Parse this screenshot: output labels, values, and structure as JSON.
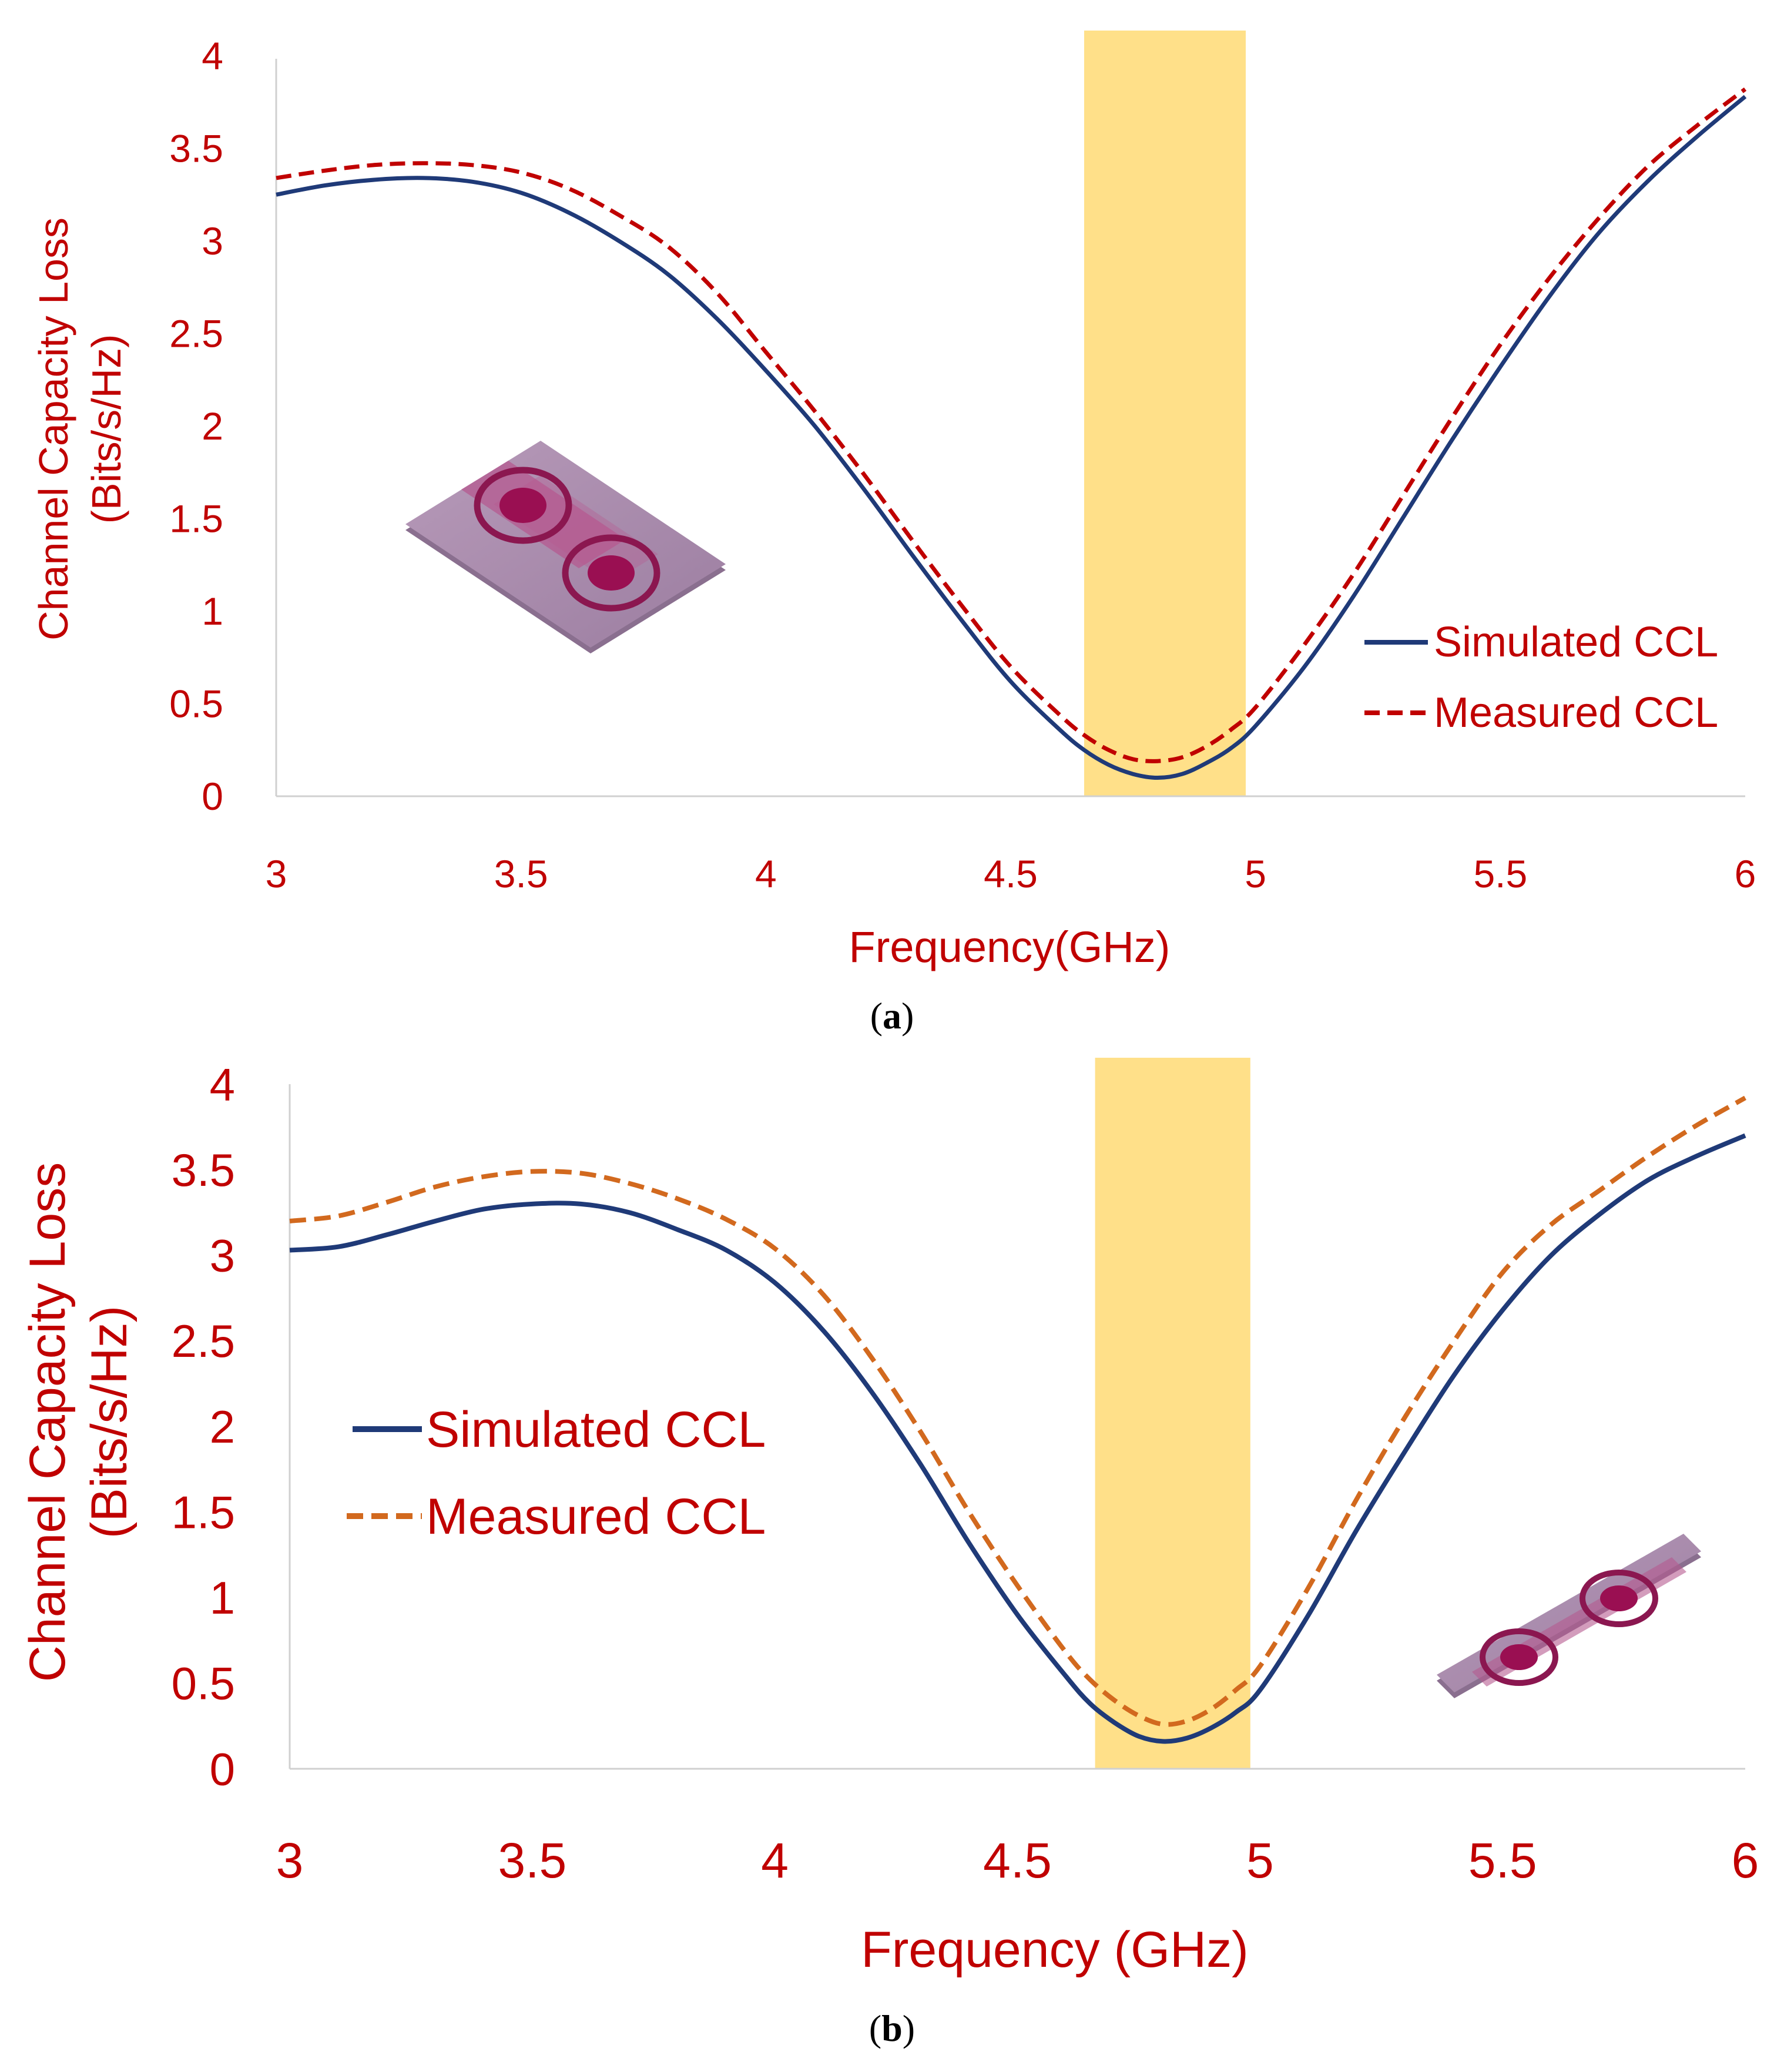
{
  "colors": {
    "axis_text": "#c00000",
    "simulated": "#1f3a78",
    "measured_a": "#c00000",
    "measured_b": "#d2691e",
    "band": "#ffe089",
    "axis_line": "#d0d0d0"
  },
  "chart_data": [
    {
      "type": "line",
      "panel_label": "a",
      "xlabel": "Frequency(GHz)",
      "ylabel_line1": "Channel Capacity Loss",
      "ylabel_line2": "(Bits/s/Hz)",
      "xlim": [
        3,
        6
      ],
      "ylim": [
        0,
        4
      ],
      "xticks": [
        "3",
        "3.5",
        "4",
        "4.5",
        "5",
        "5.5",
        "6"
      ],
      "yticks": [
        "0",
        "0.5",
        "1",
        "1.5",
        "2",
        "2.5",
        "3",
        "3.5",
        "4"
      ],
      "grid": false,
      "legend_position": "right-middle",
      "highlight_band": [
        4.65,
        4.98
      ],
      "inset": "antenna-2-port-icon",
      "series": [
        {
          "name": "Simulated CCL",
          "style": "solid",
          "x": [
            3.0,
            3.1,
            3.2,
            3.3,
            3.4,
            3.5,
            3.6,
            3.7,
            3.8,
            3.9,
            4.0,
            4.1,
            4.2,
            4.3,
            4.4,
            4.5,
            4.6,
            4.65,
            4.7,
            4.75,
            4.8,
            4.85,
            4.9,
            4.95,
            5.0,
            5.1,
            5.2,
            5.3,
            5.4,
            5.5,
            5.6,
            5.7,
            5.8,
            5.9,
            6.0
          ],
          "y": [
            3.25,
            3.3,
            3.33,
            3.34,
            3.32,
            3.26,
            3.15,
            3.0,
            2.82,
            2.58,
            2.3,
            2.0,
            1.66,
            1.3,
            0.95,
            0.62,
            0.36,
            0.25,
            0.17,
            0.12,
            0.1,
            0.12,
            0.18,
            0.26,
            0.38,
            0.7,
            1.08,
            1.5,
            1.92,
            2.32,
            2.7,
            3.04,
            3.32,
            3.56,
            3.78
          ]
        },
        {
          "name": "Measured CCL",
          "style": "dashed",
          "x": [
            3.0,
            3.1,
            3.2,
            3.3,
            3.4,
            3.5,
            3.6,
            3.7,
            3.8,
            3.9,
            4.0,
            4.1,
            4.2,
            4.3,
            4.4,
            4.5,
            4.6,
            4.65,
            4.7,
            4.75,
            4.8,
            4.85,
            4.9,
            4.95,
            5.0,
            5.1,
            5.2,
            5.3,
            5.4,
            5.5,
            5.6,
            5.7,
            5.8,
            5.9,
            6.0
          ],
          "y": [
            3.34,
            3.38,
            3.41,
            3.42,
            3.41,
            3.37,
            3.28,
            3.14,
            2.97,
            2.72,
            2.4,
            2.08,
            1.74,
            1.38,
            1.03,
            0.7,
            0.44,
            0.33,
            0.25,
            0.2,
            0.19,
            0.21,
            0.27,
            0.36,
            0.48,
            0.82,
            1.2,
            1.62,
            2.04,
            2.44,
            2.8,
            3.12,
            3.4,
            3.62,
            3.82
          ]
        }
      ]
    },
    {
      "type": "line",
      "panel_label": "b",
      "xlabel": "Frequency (GHz)",
      "ylabel_line1": "Channel Capacity Loss",
      "ylabel_line2": "(Bits/s/Hz)",
      "xlim": [
        3,
        6
      ],
      "ylim": [
        0,
        4
      ],
      "xticks": [
        "3",
        "3.5",
        "4",
        "4.5",
        "5",
        "5.5",
        "6"
      ],
      "yticks": [
        "0",
        "0.5",
        "1",
        "1.5",
        "2",
        "2.5",
        "3",
        "3.5",
        "4"
      ],
      "grid": false,
      "legend_position": "left-middle",
      "highlight_band": [
        4.66,
        4.98
      ],
      "inset": "antenna-2-port-icon",
      "series": [
        {
          "name": "Simulated CCL",
          "style": "solid",
          "x": [
            3.0,
            3.1,
            3.2,
            3.3,
            3.4,
            3.5,
            3.6,
            3.7,
            3.8,
            3.9,
            4.0,
            4.1,
            4.2,
            4.3,
            4.4,
            4.5,
            4.6,
            4.65,
            4.7,
            4.75,
            4.8,
            4.85,
            4.9,
            4.95,
            5.0,
            5.1,
            5.2,
            5.3,
            5.4,
            5.5,
            5.6,
            5.7,
            5.8,
            5.9,
            6.0
          ],
          "y": [
            3.03,
            3.05,
            3.12,
            3.2,
            3.27,
            3.3,
            3.3,
            3.25,
            3.15,
            3.03,
            2.84,
            2.56,
            2.2,
            1.78,
            1.32,
            0.9,
            0.54,
            0.38,
            0.27,
            0.19,
            0.16,
            0.18,
            0.24,
            0.33,
            0.46,
            0.9,
            1.4,
            1.86,
            2.3,
            2.68,
            3.0,
            3.24,
            3.44,
            3.58,
            3.7
          ]
        },
        {
          "name": "Measured CCL",
          "style": "dashed",
          "x": [
            3.0,
            3.1,
            3.2,
            3.3,
            3.4,
            3.5,
            3.6,
            3.7,
            3.8,
            3.9,
            4.0,
            4.1,
            4.2,
            4.3,
            4.4,
            4.5,
            4.6,
            4.65,
            4.7,
            4.75,
            4.8,
            4.85,
            4.9,
            4.95,
            5.0,
            5.1,
            5.2,
            5.3,
            5.4,
            5.5,
            5.6,
            5.7,
            5.8,
            5.9,
            6.0
          ],
          "y": [
            3.2,
            3.23,
            3.31,
            3.4,
            3.46,
            3.49,
            3.48,
            3.42,
            3.33,
            3.21,
            3.04,
            2.77,
            2.4,
            1.97,
            1.5,
            1.07,
            0.68,
            0.52,
            0.4,
            0.31,
            0.26,
            0.28,
            0.35,
            0.46,
            0.6,
            1.06,
            1.58,
            2.06,
            2.5,
            2.9,
            3.18,
            3.38,
            3.58,
            3.76,
            3.92
          ]
        }
      ]
    }
  ]
}
